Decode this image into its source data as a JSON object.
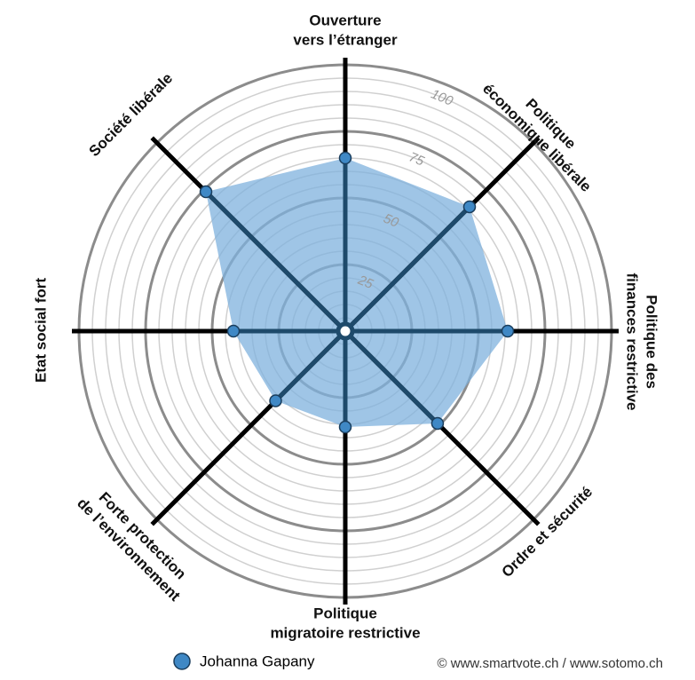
{
  "chart_data": {
    "type": "radar",
    "categories": [
      [
        "Ouverture",
        "vers l’étranger"
      ],
      [
        "Politique",
        "économique libérale"
      ],
      [
        "Politique des",
        "finances restrictive"
      ],
      [
        "Ordre et sécurité"
      ],
      [
        "Politique",
        "migratoire restrictive"
      ],
      [
        "Forte protection",
        "de l’environnement"
      ],
      [
        "Etat social fort"
      ],
      [
        "Société libérale"
      ]
    ],
    "series": [
      {
        "name": "Johanna Gapany",
        "color": "#3f88c5",
        "values": [
          65,
          66,
          61,
          49,
          36,
          37,
          42,
          74
        ]
      }
    ],
    "rlim": [
      0,
      100
    ],
    "rticks": [
      25,
      50,
      75,
      100
    ],
    "grid": true,
    "area_color": "#7fb2dd",
    "spoke_color": "#000000",
    "inner_spoke_color": "#1e4a6b",
    "source": "© www.smartvote.ch / www.sotomo.ch"
  }
}
